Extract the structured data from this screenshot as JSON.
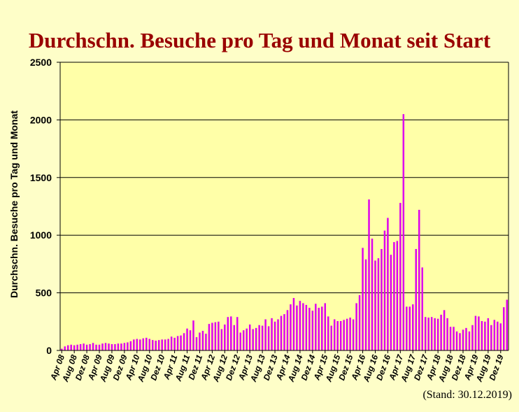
{
  "chart_data": {
    "type": "bar",
    "title": "Durchschn. Besuche pro Tag und Monat seit Start",
    "ylabel": "Durchschn. Besuche pro Tag und Monat",
    "xlabel": "",
    "ylim": [
      0,
      2500
    ],
    "yticks": [
      0,
      500,
      1000,
      1500,
      2000,
      2500
    ],
    "grid": true,
    "legend": "none",
    "bar_color": "#dd00ee",
    "xtick_labels": [
      "Apr 08",
      "Aug 08",
      "Dez 08",
      "Apr 09",
      "Aug 09",
      "Dez 09",
      "Apr 10",
      "Aug 10",
      "Dez 10",
      "Apr 11",
      "Aug 11",
      "Dez 11",
      "Apr 12",
      "Aug 12",
      "Dez 12",
      "Apr 13",
      "Aug 13",
      "Dez 13",
      "Apr 14",
      "Aug 14",
      "Dez 14",
      "Apr 15",
      "Aug 15",
      "Dez 15",
      "Apr 16",
      "Aug 16",
      "Dez 16",
      "Apr 17",
      "Aug 17",
      "Dez 17",
      "Apr 18",
      "Aug 18",
      "Dez 18",
      "Apr 19",
      "Aug 19",
      "Dez 19"
    ],
    "series": [
      {
        "values": [
          15,
          35,
          45,
          50,
          45,
          50,
          55,
          60,
          50,
          55,
          65,
          50,
          50,
          60,
          65,
          60,
          55,
          55,
          60,
          60,
          65,
          70,
          80,
          95,
          100,
          95,
          105,
          110,
          100,
          90,
          85,
          90,
          95,
          95,
          100,
          120,
          110,
          125,
          130,
          150,
          190,
          175,
          260,
          115,
          155,
          170,
          145,
          230,
          240,
          245,
          250,
          185,
          225,
          290,
          295,
          220,
          290,
          155,
          175,
          190,
          225,
          185,
          195,
          220,
          215,
          270,
          210,
          280,
          250,
          270,
          300,
          315,
          350,
          400,
          455,
          390,
          430,
          410,
          395,
          370,
          345,
          405,
          370,
          380,
          410,
          295,
          215,
          270,
          255,
          255,
          265,
          275,
          285,
          270,
          410,
          480,
          890,
          790,
          1310,
          970,
          780,
          800,
          880,
          1040,
          1150,
          830,
          940,
          950,
          1280,
          2050,
          380,
          380,
          400,
          880,
          1220,
          720,
          290,
          285,
          290,
          280,
          275,
          310,
          350,
          280,
          205,
          205,
          165,
          150,
          180,
          195,
          165,
          220,
          300,
          295,
          255,
          250,
          280,
          220,
          265,
          250,
          235,
          375,
          440
        ]
      }
    ]
  },
  "note": "(Stand: 30.12.2019)"
}
